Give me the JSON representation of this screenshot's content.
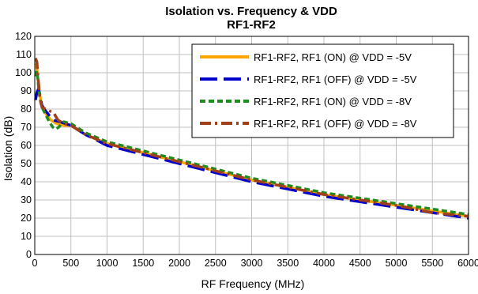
{
  "chart_data": {
    "type": "line",
    "title": "Isolation vs. Frequency & VDD",
    "subtitle": "RF1-RF2",
    "xlabel": "RF Frequency (MHz)",
    "ylabel": "Isolation (dB)",
    "xlim": [
      0,
      6000
    ],
    "ylim": [
      0,
      120
    ],
    "xticks": [
      0,
      500,
      1000,
      1500,
      2000,
      2500,
      3000,
      3500,
      4000,
      4500,
      5000,
      5500,
      6000
    ],
    "yticks": [
      0,
      10,
      20,
      30,
      40,
      50,
      60,
      70,
      80,
      90,
      100,
      110,
      120
    ],
    "grid": true,
    "legend_position": "top-right",
    "series": [
      {
        "name": "RF1-RF2, RF1 (ON) @ VDD = -5V",
        "color": "#FFA500",
        "dash": "solid",
        "x": [
          10,
          30,
          50,
          70,
          90,
          120,
          160,
          220,
          300,
          400,
          500,
          700,
          1000,
          1300,
          1500,
          1700,
          2000,
          2500,
          3000,
          3500,
          4000,
          4500,
          5000,
          5500,
          6000
        ],
        "y": [
          105,
          102,
          95,
          88,
          83,
          80,
          77,
          74,
          72,
          71,
          71,
          66,
          61,
          58,
          56,
          54,
          51,
          46,
          41,
          37,
          33,
          30,
          27,
          24,
          21
        ]
      },
      {
        "name": "RF1-RF2, RF1 (OFF) @ VDD = -5V",
        "color": "#0000CC",
        "dash": "long-dash",
        "x": [
          10,
          30,
          50,
          70,
          100,
          150,
          250,
          350,
          500,
          700,
          1000,
          1300,
          1500,
          1700,
          2000,
          2500,
          3000,
          3500,
          4000,
          4500,
          5000,
          5500,
          6000
        ],
        "y": [
          85,
          89,
          91,
          88,
          82,
          79,
          74,
          73,
          71,
          66,
          60,
          57,
          55,
          53,
          50,
          45,
          40,
          36,
          32,
          29,
          26,
          23,
          20
        ]
      },
      {
        "name": "RF1-RF2, RF1 (ON) @ VDD = -8V",
        "color": "#1E8C1E",
        "dash": "short-dash",
        "x": [
          10,
          30,
          50,
          70,
          100,
          150,
          200,
          250,
          290,
          330,
          400,
          500,
          700,
          1000,
          1300,
          1500,
          1700,
          2000,
          2500,
          3000,
          3500,
          4000,
          4500,
          5000,
          5500,
          6000
        ],
        "y": [
          98,
          101,
          93,
          86,
          81,
          77,
          73,
          70,
          69,
          70,
          73,
          72,
          67,
          62,
          59,
          57,
          55,
          52,
          47,
          42,
          38,
          34,
          31,
          28,
          25,
          22
        ]
      },
      {
        "name": "RF1-RF2, RF1 (OFF) @ VDD = -8V",
        "color": "#A0401A",
        "dash": "dash-dot",
        "x": [
          10,
          30,
          50,
          70,
          100,
          150,
          200,
          260,
          320,
          400,
          500,
          700,
          1000,
          1300,
          1500,
          1700,
          2000,
          2500,
          3000,
          3500,
          4000,
          4500,
          5000,
          5500,
          6000
        ],
        "y": [
          108,
          106,
          95,
          86,
          81,
          80,
          79,
          78,
          74,
          72,
          71,
          66,
          61,
          58,
          56,
          54,
          51,
          46,
          41,
          37,
          33,
          30,
          27,
          23,
          21
        ]
      }
    ]
  }
}
